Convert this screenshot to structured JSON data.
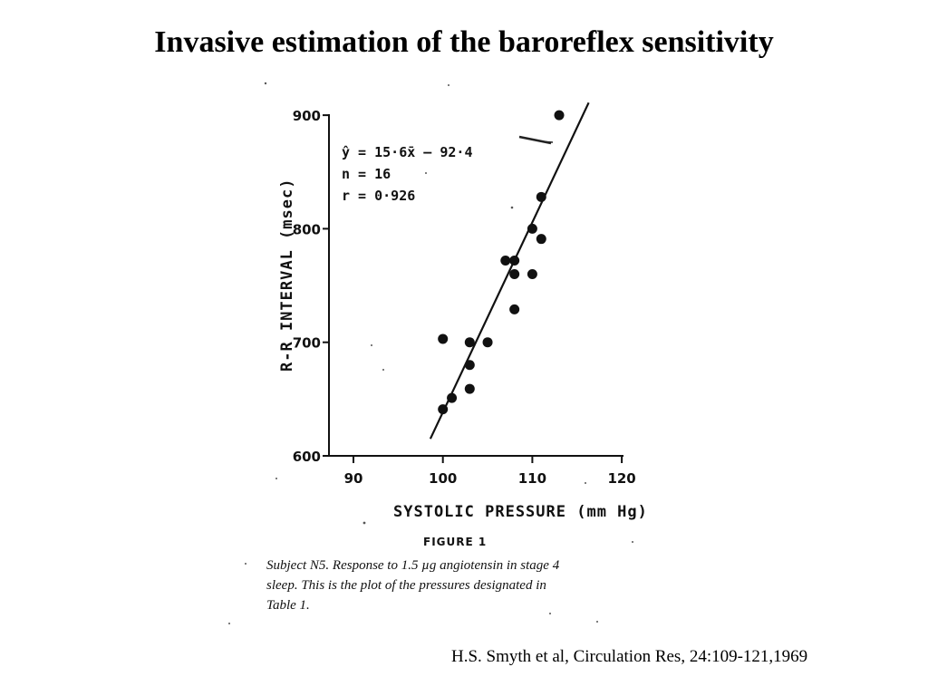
{
  "slide": {
    "title": "Invasive estimation of the baroreflex sensitivity",
    "citation": "H.S. Smyth et al, Circulation Res, 24:109-121,1969"
  },
  "figure": {
    "equation_lines": [
      "ŷ = 15·6x̄ – 92·4",
      "n = 16",
      "r = 0·926"
    ],
    "figure_label": "FIGURE 1",
    "caption_lines": [
      "Subject N5. Response to 1.5 µg angiotensin in stage 4",
      "sleep. This is the plot of the pressures designated in",
      "Table 1."
    ]
  },
  "chart_data": {
    "type": "scatter",
    "xlabel": "SYSTOLIC PRESSURE (mm Hg)",
    "ylabel": "R-R INTERVAL (msec)",
    "xlim": [
      87,
      121
    ],
    "ylim": [
      600,
      905
    ],
    "xticks": [
      90,
      100,
      110,
      120
    ],
    "yticks": [
      600,
      700,
      800,
      900
    ],
    "grid": false,
    "points": [
      {
        "x": 100,
        "y": 641
      },
      {
        "x": 101,
        "y": 651
      },
      {
        "x": 100,
        "y": 703
      },
      {
        "x": 103,
        "y": 659
      },
      {
        "x": 103,
        "y": 680
      },
      {
        "x": 103,
        "y": 700
      },
      {
        "x": 105,
        "y": 700
      },
      {
        "x": 107,
        "y": 772
      },
      {
        "x": 108,
        "y": 729
      },
      {
        "x": 108,
        "y": 760
      },
      {
        "x": 108,
        "y": 772
      },
      {
        "x": 110,
        "y": 760
      },
      {
        "x": 110,
        "y": 800
      },
      {
        "x": 111,
        "y": 791
      },
      {
        "x": 111,
        "y": 828
      },
      {
        "x": 113,
        "y": 900
      }
    ],
    "regression": {
      "x": [
        98.6,
        116.3
      ],
      "y": [
        615,
        911
      ]
    },
    "colors": {
      "ink": "#111111",
      "background": "#ffffff"
    }
  }
}
